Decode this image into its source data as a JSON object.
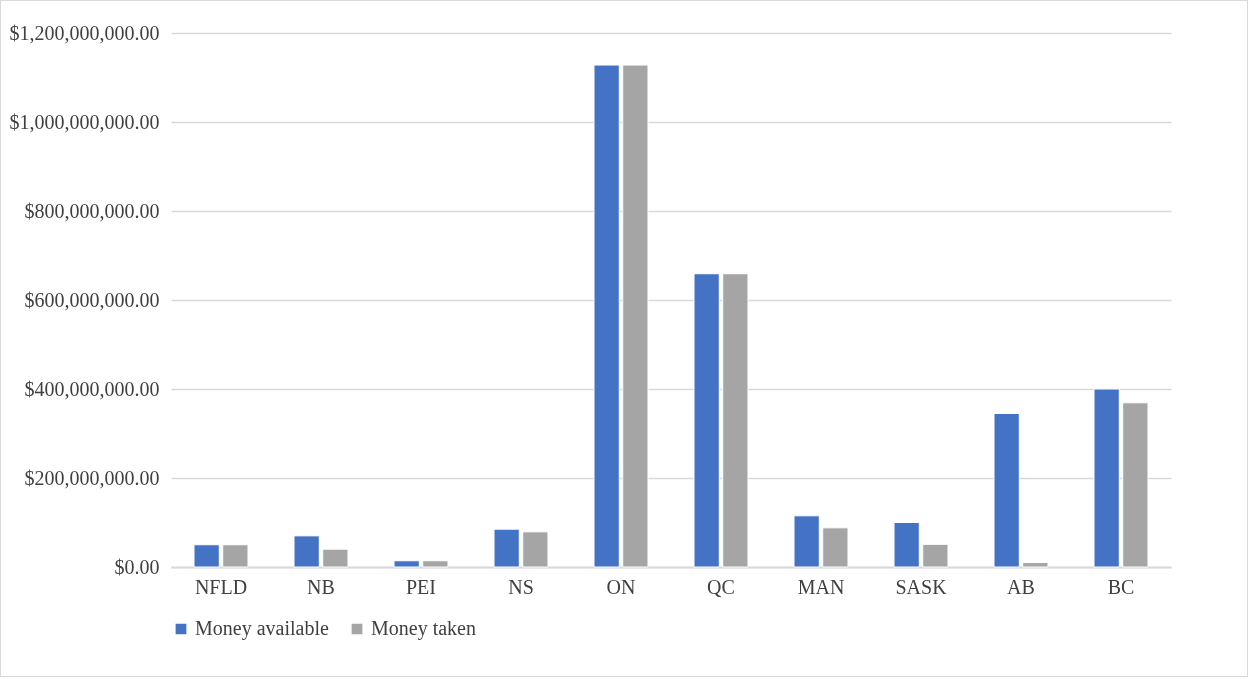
{
  "chart_data": {
    "type": "bar",
    "categories": [
      "NFLD",
      "NB",
      "PEI",
      "NS",
      "ON",
      "QC",
      "MAN",
      "SASK",
      "AB",
      "BC"
    ],
    "series": [
      {
        "name": "Money available",
        "color": "#4472c4",
        "values": [
          50000000,
          70000000,
          14000000,
          85000000,
          1128000000,
          659000000,
          115000000,
          100000000,
          345000000,
          400000000
        ]
      },
      {
        "name": "Money taken",
        "color": "#a5a5a5",
        "values": [
          50000000,
          40000000,
          14000000,
          79000000,
          1128000000,
          659000000,
          88000000,
          51000000,
          10000000,
          369000000
        ]
      }
    ],
    "ylim": [
      0,
      1200000000
    ],
    "yticks": [
      {
        "value": 0,
        "label": "$0.00"
      },
      {
        "value": 200000000,
        "label": "$200,000,000.00"
      },
      {
        "value": 400000000,
        "label": "$400,000,000.00"
      },
      {
        "value": 600000000,
        "label": "$600,000,000.00"
      },
      {
        "value": 800000000,
        "label": "$800,000,000.00"
      },
      {
        "value": 1000000000,
        "label": "$1,000,000,000.00"
      },
      {
        "value": 1200000000,
        "label": "$1,200,000,000.00"
      }
    ],
    "grid": "y",
    "legend": "bottom"
  }
}
